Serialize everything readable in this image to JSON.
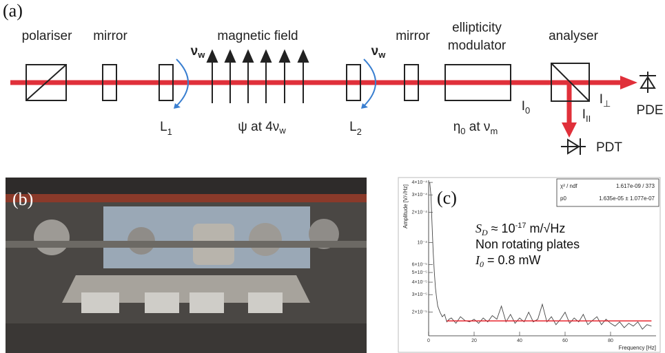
{
  "panel_a": {
    "label": "(a)",
    "polariser": "polariser",
    "mirror_1": "mirror",
    "magnetic_field": "magnetic field",
    "mirror_2": "mirror",
    "modulator": [
      "ellipticity",
      "modulator"
    ],
    "analyser": "analyser",
    "nu_w_1": [
      "ν",
      "w"
    ],
    "nu_w_2": [
      "ν",
      "w"
    ],
    "L1": [
      "L",
      "1"
    ],
    "L2": [
      "L",
      "2"
    ],
    "psi": [
      "ψ at 4ν",
      "w"
    ],
    "eta": [
      "η",
      "0",
      " at ν",
      "m"
    ],
    "I0": [
      "I",
      "0"
    ],
    "I_perp": [
      "I",
      "⊥"
    ],
    "I_par": [
      "I",
      "II"
    ],
    "PDE": "PDE",
    "PDT": "PDT"
  },
  "panel_b": {
    "label": "(b)"
  },
  "panel_c": {
    "label": "(c)",
    "annotation": [
      [
        "S",
        "D",
        " ≈ 10",
        "-17",
        " m/√Hz"
      ],
      "Non rotating plates",
      [
        "I",
        "0",
        " = 0.8 mW"
      ]
    ],
    "stats": [
      [
        "χ² / ndf",
        "1.617e-09 / 373"
      ],
      [
        "p0",
        "1.635e-05 ± 1.077e-07"
      ]
    ],
    "chart_data": {
      "type": "line",
      "xlabel": "Frequency [Hz]",
      "ylabel": "Amplitude [V/√Hz]",
      "xlim": [
        0,
        100
      ],
      "xticks": [
        0,
        20,
        40,
        60,
        80
      ],
      "ylim": [
        1.16e-05,
        0.00042
      ],
      "ylog": true,
      "yticks": [
        {
          "value": 2e-05,
          "label": "2×10⁻⁵"
        },
        {
          "value": 3e-05,
          "label": "3×10⁻⁵"
        },
        {
          "value": 4e-05,
          "label": "4×10⁻⁵"
        },
        {
          "value": 5e-05,
          "label": "5×10⁻⁵"
        },
        {
          "value": 6e-05,
          "label": "6×10⁻⁵"
        },
        {
          "value": 0.0001,
          "label": "10⁻⁴"
        },
        {
          "value": 0.0002,
          "label": "2×10⁻⁴"
        },
        {
          "value": 0.0003,
          "label": "3×10⁻⁴"
        },
        {
          "value": 0.0004,
          "label": "4×10⁻⁴"
        }
      ],
      "series": [
        {
          "color": "#444444",
          "x": [
            0.5,
            1,
            1.5,
            2,
            2.5,
            3,
            3.5,
            4,
            5,
            6,
            7,
            8,
            9,
            10,
            12,
            14,
            16,
            18,
            20,
            22,
            24,
            26,
            28,
            30,
            32,
            34,
            36,
            38,
            40,
            42,
            44,
            46,
            48,
            50,
            52,
            54,
            56,
            58,
            60,
            62,
            64,
            66,
            68,
            70,
            72,
            74,
            76,
            78,
            80,
            82,
            84,
            86,
            88,
            90,
            92,
            94,
            96,
            98
          ],
          "values": [
            0.0004,
            0.0003,
            0.00015,
            8e-05,
            5e-05,
            3.5e-05,
            2.8e-05,
            2.3e-05,
            2e-05,
            1.8e-05,
            1.9e-05,
            1.6e-05,
            1.7e-05,
            1.75e-05,
            1.55e-05,
            1.8e-05,
            1.65e-05,
            1.6e-05,
            1.7e-05,
            1.55e-05,
            1.75e-05,
            1.6e-05,
            1.85e-05,
            1.7e-05,
            2.3e-05,
            1.6e-05,
            1.9e-05,
            1.55e-05,
            1.75e-05,
            1.6e-05,
            2e-05,
            1.6e-05,
            1.7e-05,
            2.4e-05,
            1.6e-05,
            1.8e-05,
            1.5e-05,
            1.7e-05,
            2e-05,
            1.55e-05,
            1.75e-05,
            1.6e-05,
            1.9e-05,
            1.5e-05,
            1.65e-05,
            1.8e-05,
            1.5e-05,
            1.7e-05,
            1.55e-05,
            1.45e-05,
            1.6e-05,
            1.4e-05,
            1.55e-05,
            1.45e-05,
            1.6e-05,
            1.35e-05,
            1.5e-05,
            1.45e-05
          ]
        }
      ],
      "fit": {
        "x": [
          8,
          98
        ],
        "value": 1.635e-05,
        "color": "#e8202a"
      }
    }
  }
}
